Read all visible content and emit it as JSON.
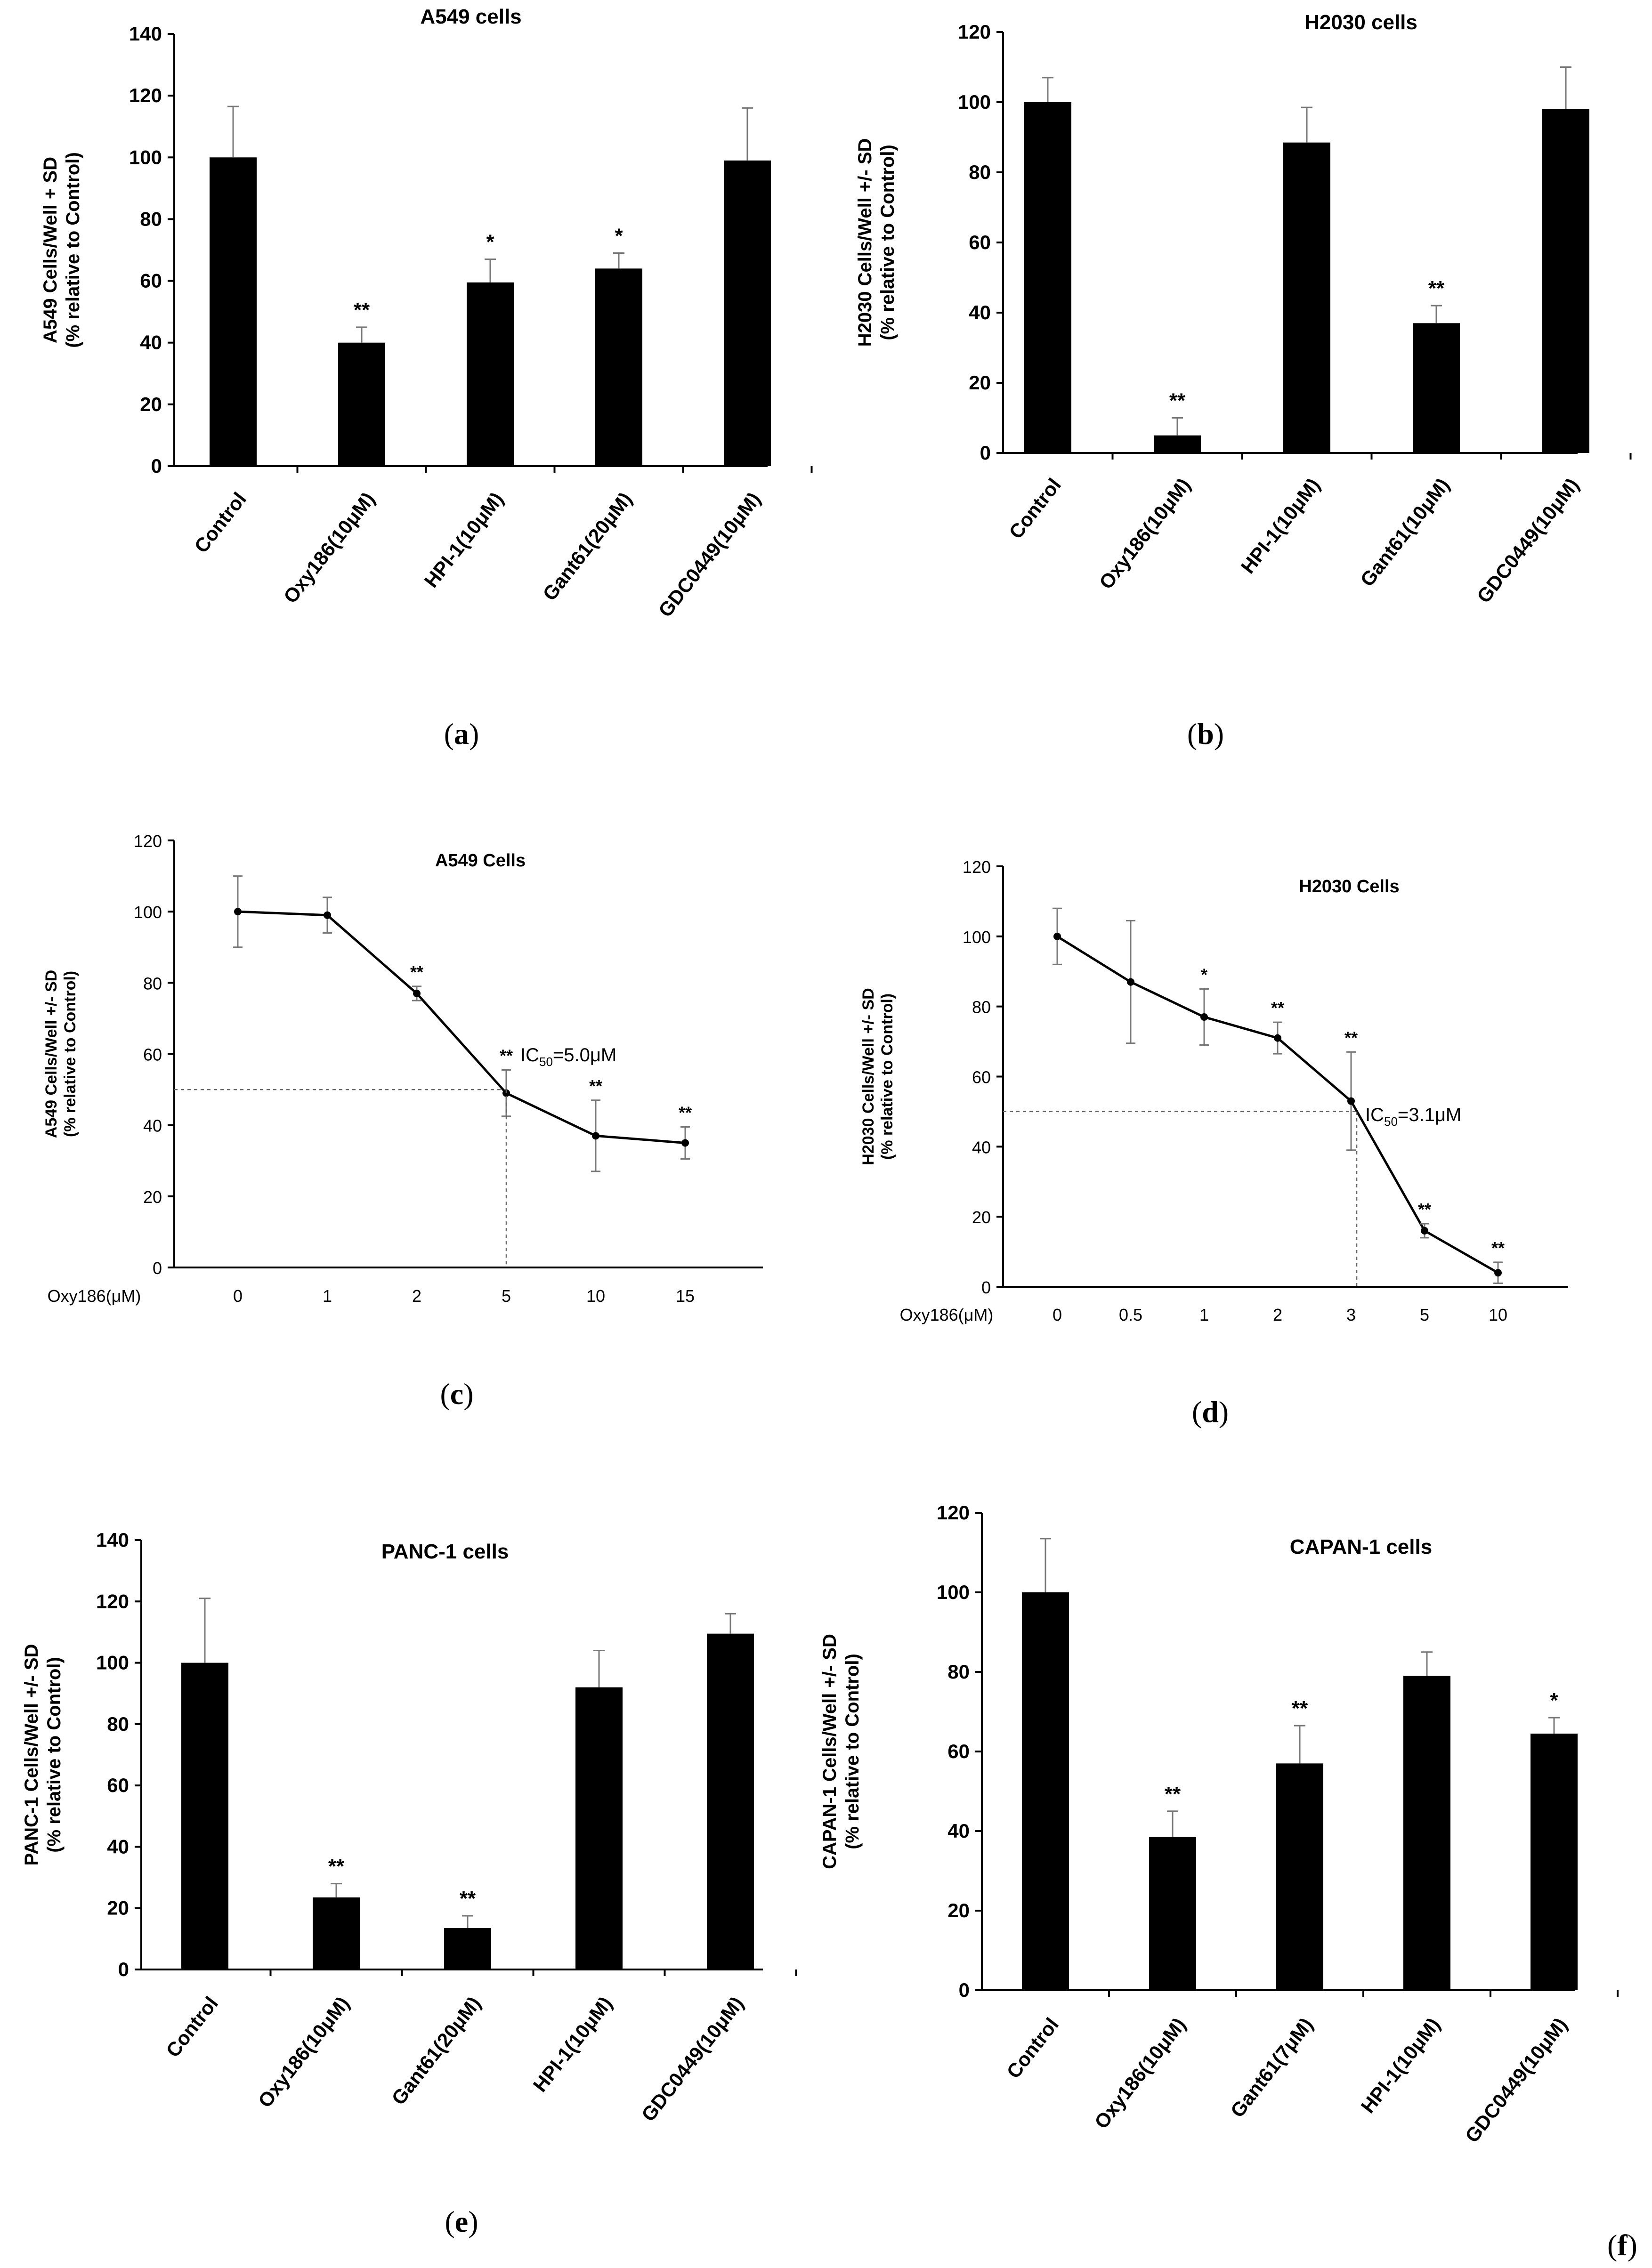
{
  "chart_data": [
    {
      "id": "a",
      "panel_label": "a",
      "type": "bar",
      "title": "A549 cells",
      "ylabel_lines": [
        "A549 Cells/Well + SD",
        "(% relative to Control)"
      ],
      "ylim": [
        0,
        140
      ],
      "yticks": [
        0,
        20,
        40,
        60,
        80,
        100,
        120,
        140
      ],
      "categories": [
        "Control",
        "Oxy186(10μM)",
        "HPI-1(10μM)",
        "Gant61(20μM)",
        "GDC0449(10μM)"
      ],
      "values": [
        100,
        40,
        59.5,
        64,
        99
      ],
      "errors": [
        16.5,
        5,
        7.5,
        5,
        17
      ],
      "significance": [
        "",
        "**",
        "*",
        "*",
        ""
      ]
    },
    {
      "id": "b",
      "panel_label": "b",
      "type": "bar",
      "title": "H2030 cells",
      "ylabel_lines": [
        "H2030 Cells/Well +/- SD",
        "(% relative to Control)"
      ],
      "ylim": [
        0,
        120
      ],
      "yticks": [
        0,
        20,
        40,
        60,
        80,
        100,
        120
      ],
      "categories": [
        "Control",
        "Oxy186(10μM)",
        "HPI-1(10μM)",
        "Gant61(10μM)",
        "GDC0449(10μM)"
      ],
      "values": [
        100,
        5,
        88.5,
        37,
        98
      ],
      "errors": [
        7,
        5,
        10,
        5,
        12
      ],
      "significance": [
        "",
        "**",
        "",
        "**",
        ""
      ]
    },
    {
      "id": "c",
      "panel_label": "c",
      "type": "line",
      "title": "A549 Cells",
      "ylabel_lines": [
        "A549 Cells/Well +/- SD",
        "(% relative to Control)"
      ],
      "xlabel": "Oxy186(μM)",
      "ylim": [
        0,
        120
      ],
      "yticks": [
        0,
        20,
        40,
        60,
        80,
        100,
        120
      ],
      "x": [
        "0",
        "1",
        "2",
        "5",
        "10",
        "15"
      ],
      "values": [
        100,
        99,
        77,
        49,
        37,
        35
      ],
      "errors": [
        10,
        5,
        2,
        6.5,
        10,
        4.5
      ],
      "significance": [
        "",
        "",
        "**",
        "**",
        "**",
        "**"
      ],
      "annotation": {
        "prefix": "IC",
        "sub": "50",
        "suffix": "=5.0μM"
      },
      "ic50_value": 50
    },
    {
      "id": "d",
      "panel_label": "d",
      "type": "line",
      "title": "H2030 Cells",
      "ylabel_lines": [
        "H2030 Cells/Well +/- SD",
        "(% relative to Control)"
      ],
      "xlabel": "Oxy186(μM)",
      "ylim": [
        0,
        120
      ],
      "yticks": [
        0,
        20,
        40,
        60,
        80,
        100,
        120
      ],
      "x": [
        "0",
        "0.5",
        "1",
        "2",
        "3",
        "5",
        "10"
      ],
      "values": [
        100,
        87,
        77,
        71,
        53,
        16,
        4
      ],
      "errors": [
        8,
        17.5,
        8,
        4.5,
        14,
        2,
        3
      ],
      "significance": [
        "",
        "",
        "*",
        "**",
        "**",
        "**",
        "**"
      ],
      "annotation": {
        "prefix": "IC",
        "sub": "50",
        "suffix": "=3.1μM"
      },
      "ic50_value": 50
    },
    {
      "id": "e",
      "panel_label": "e",
      "type": "bar",
      "title": "PANC-1 cells",
      "ylabel_lines": [
        "PANC-1 Cells/Well +/- SD",
        "(% relative to Control)"
      ],
      "ylim": [
        0,
        140
      ],
      "yticks": [
        0,
        20,
        40,
        60,
        80,
        100,
        120,
        140
      ],
      "categories": [
        "Control",
        "Oxy186(10μM)",
        "Gant61(20μM)",
        "HPI-1(10μM)",
        "GDC0449(10μM)"
      ],
      "values": [
        100,
        23.5,
        13.5,
        92,
        109.5
      ],
      "errors": [
        21,
        4.5,
        4,
        12,
        6.5
      ],
      "significance": [
        "",
        "**",
        "**",
        "",
        ""
      ]
    },
    {
      "id": "f",
      "panel_label": "f",
      "type": "bar",
      "title": "CAPAN-1 cells",
      "ylabel_lines": [
        "CAPAN-1 Cells/Well +/- SD",
        "(% relative to Control)"
      ],
      "ylim": [
        0,
        120
      ],
      "yticks": [
        0,
        20,
        40,
        60,
        80,
        100,
        120
      ],
      "categories": [
        "Control",
        "Oxy186(10μM)",
        "Gant61(7μM)",
        "HPI-1(10μM)",
        "GDC0449(10μM)"
      ],
      "values": [
        100,
        38.5,
        57,
        79,
        64.5
      ],
      "errors": [
        13.5,
        6.5,
        9.5,
        6,
        4
      ],
      "significance": [
        "",
        "**",
        "**",
        "",
        "*"
      ]
    }
  ]
}
